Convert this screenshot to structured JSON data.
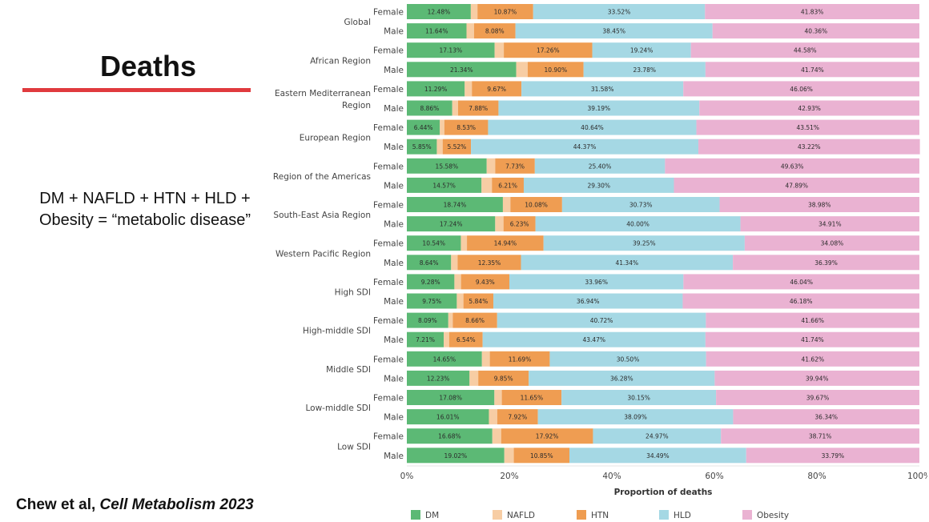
{
  "slide": {
    "title": "Deaths",
    "subtitle_line1": "DM + NAFLD + HTN + HLD +",
    "subtitle_line2": "Obesity = “metabolic disease”",
    "citation_authors": "Chew et al, ",
    "citation_journal": "Cell Metabolism 2023",
    "accent_color": "#e03a3e"
  },
  "chart_data": {
    "type": "bar",
    "orientation": "horizontal",
    "stacked": true,
    "normalized": true,
    "xlabel": "Proportion of deaths",
    "xlim": [
      0,
      100
    ],
    "xticks": [
      "0%",
      "20%",
      "40%",
      "60%",
      "80%",
      "100%"
    ],
    "legend_position": "bottom",
    "series": [
      {
        "name": "DM",
        "color": "#5cb975"
      },
      {
        "name": "NAFLD",
        "color": "#f7cda4"
      },
      {
        "name": "HTN",
        "color": "#ef9d52"
      },
      {
        "name": "HLD",
        "color": "#a5d8e4"
      },
      {
        "name": "Obesity",
        "color": "#eab2d2"
      }
    ],
    "groups": [
      {
        "name": "Global",
        "rows": [
          {
            "sex": "Female",
            "values": [
              12.48,
              1.3,
              10.87,
              33.52,
              41.83
            ],
            "labels": [
              "12.48%",
              "",
              "10.87%",
              "33.52%",
              "41.83%"
            ]
          },
          {
            "sex": "Male",
            "values": [
              11.64,
              1.47,
              8.08,
              38.45,
              40.36
            ],
            "labels": [
              "11.64%",
              "",
              "8.08%",
              "38.45%",
              "40.36%"
            ]
          }
        ]
      },
      {
        "name": "African Region",
        "rows": [
          {
            "sex": "Female",
            "values": [
              17.13,
              1.79,
              17.26,
              19.24,
              44.58
            ],
            "labels": [
              "17.13%",
              "",
              "17.26%",
              "19.24%",
              "44.58%"
            ]
          },
          {
            "sex": "Male",
            "values": [
              21.34,
              2.24,
              10.9,
              23.78,
              41.74
            ],
            "labels": [
              "21.34%",
              "",
              "10.90%",
              "23.78%",
              "41.74%"
            ]
          }
        ]
      },
      {
        "name": "Eastern Mediterranean Region",
        "rows": [
          {
            "sex": "Female",
            "values": [
              11.29,
              1.4,
              9.67,
              31.58,
              46.06
            ],
            "labels": [
              "11.29%",
              "",
              "9.67%",
              "31.58%",
              "46.06%"
            ]
          },
          {
            "sex": "Male",
            "values": [
              8.86,
              1.14,
              7.88,
              39.19,
              42.93
            ],
            "labels": [
              "8.86%",
              "",
              "7.88%",
              "39.19%",
              "42.93%"
            ]
          }
        ]
      },
      {
        "name": "European Region",
        "rows": [
          {
            "sex": "Female",
            "values": [
              6.44,
              0.88,
              8.53,
              40.64,
              43.51
            ],
            "labels": [
              "6.44%",
              "",
              "8.53%",
              "40.64%",
              "43.51%"
            ]
          },
          {
            "sex": "Male",
            "values": [
              5.85,
              1.14,
              5.52,
              44.37,
              43.22
            ],
            "labels": [
              "5.85%",
              "",
              "5.52%",
              "44.37%",
              "43.22%"
            ]
          }
        ]
      },
      {
        "name": "Region of the Americas",
        "rows": [
          {
            "sex": "Female",
            "values": [
              15.58,
              1.66,
              7.73,
              25.4,
              49.63
            ],
            "labels": [
              "15.58%",
              "",
              "7.73%",
              "25.40%",
              "49.63%"
            ]
          },
          {
            "sex": "Male",
            "values": [
              14.57,
              2.03,
              6.21,
              29.3,
              47.89
            ],
            "labels": [
              "14.57%",
              "",
              "6.21%",
              "29.30%",
              "47.89%"
            ]
          }
        ]
      },
      {
        "name": "South-East Asia Region",
        "rows": [
          {
            "sex": "Female",
            "values": [
              18.74,
              1.47,
              10.08,
              30.73,
              38.98
            ],
            "labels": [
              "18.74%",
              "",
              "10.08%",
              "30.73%",
              "38.98%"
            ]
          },
          {
            "sex": "Male",
            "values": [
              17.24,
              1.62,
              6.23,
              40.0,
              34.91
            ],
            "labels": [
              "17.24%",
              "",
              "6.23%",
              "40.00%",
              "34.91%"
            ]
          }
        ]
      },
      {
        "name": "Western Pacific Region",
        "rows": [
          {
            "sex": "Female",
            "values": [
              10.54,
              1.19,
              14.94,
              39.25,
              34.08
            ],
            "labels": [
              "10.54%",
              "",
              "14.94%",
              "39.25%",
              "34.08%"
            ]
          },
          {
            "sex": "Male",
            "values": [
              8.64,
              1.28,
              12.35,
              41.34,
              36.39
            ],
            "labels": [
              "8.64%",
              "",
              "12.35%",
              "41.34%",
              "36.39%"
            ]
          }
        ]
      },
      {
        "name": "High SDI",
        "rows": [
          {
            "sex": "Female",
            "values": [
              9.28,
              1.29,
              9.43,
              33.96,
              46.04
            ],
            "labels": [
              "9.28%",
              "",
              "9.43%",
              "33.96%",
              "46.04%"
            ]
          },
          {
            "sex": "Male",
            "values": [
              9.75,
              1.29,
              5.84,
              36.94,
              46.18
            ],
            "labels": [
              "9.75%",
              "",
              "5.84%",
              "36.94%",
              "46.18%"
            ]
          }
        ]
      },
      {
        "name": "High-middle SDI",
        "rows": [
          {
            "sex": "Female",
            "values": [
              8.09,
              0.87,
              8.66,
              40.72,
              41.66
            ],
            "labels": [
              "8.09%",
              "",
              "8.66%",
              "40.72%",
              "41.66%"
            ]
          },
          {
            "sex": "Male",
            "values": [
              7.21,
              1.04,
              6.54,
              43.47,
              41.74
            ],
            "labels": [
              "7.21%",
              "",
              "6.54%",
              "43.47%",
              "41.74%"
            ]
          }
        ]
      },
      {
        "name": "Middle SDI",
        "rows": [
          {
            "sex": "Female",
            "values": [
              14.65,
              1.54,
              11.69,
              30.5,
              41.62
            ],
            "labels": [
              "14.65%",
              "",
              "11.69%",
              "30.50%",
              "41.62%"
            ]
          },
          {
            "sex": "Male",
            "values": [
              12.23,
              1.7,
              9.85,
              36.28,
              39.94
            ],
            "labels": [
              "12.23%",
              "",
              "9.85%",
              "36.28%",
              "39.94%"
            ]
          }
        ]
      },
      {
        "name": "Low-middle SDI",
        "rows": [
          {
            "sex": "Female",
            "values": [
              17.08,
              1.45,
              11.65,
              30.15,
              39.67
            ],
            "labels": [
              "17.08%",
              "",
              "11.65%",
              "30.15%",
              "39.67%"
            ]
          },
          {
            "sex": "Male",
            "values": [
              16.01,
              1.64,
              7.92,
              38.09,
              36.34
            ],
            "labels": [
              "16.01%",
              "",
              "7.92%",
              "38.09%",
              "36.34%"
            ]
          }
        ]
      },
      {
        "name": "Low SDI",
        "rows": [
          {
            "sex": "Female",
            "values": [
              16.68,
              1.72,
              17.92,
              24.97,
              38.71
            ],
            "labels": [
              "16.68%",
              "",
              "17.92%",
              "24.97%",
              "38.71%"
            ]
          },
          {
            "sex": "Male",
            "values": [
              19.02,
              1.85,
              10.85,
              34.49,
              33.79
            ],
            "labels": [
              "19.02%",
              "",
              "10.85%",
              "34.49%",
              "33.79%"
            ]
          }
        ]
      }
    ]
  }
}
